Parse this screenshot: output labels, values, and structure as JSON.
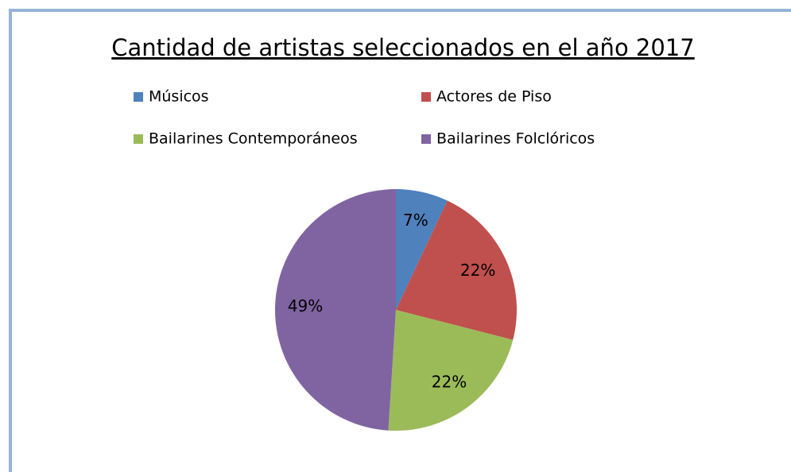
{
  "chart_data": {
    "type": "pie",
    "title": "Cantidad de artistas seleccionados en el año 2017",
    "categories": [
      "Músicos",
      "Actores de Piso",
      "Bailarines Contemporáneos",
      "Bailarines Folclóricos"
    ],
    "values": [
      7,
      22,
      22,
      49
    ],
    "value_labels": [
      "7%",
      "22%",
      "22%",
      "49%"
    ],
    "colors": [
      "#4f81bd",
      "#c0504d",
      "#9bbb59",
      "#8064a2"
    ],
    "legend": "top"
  }
}
